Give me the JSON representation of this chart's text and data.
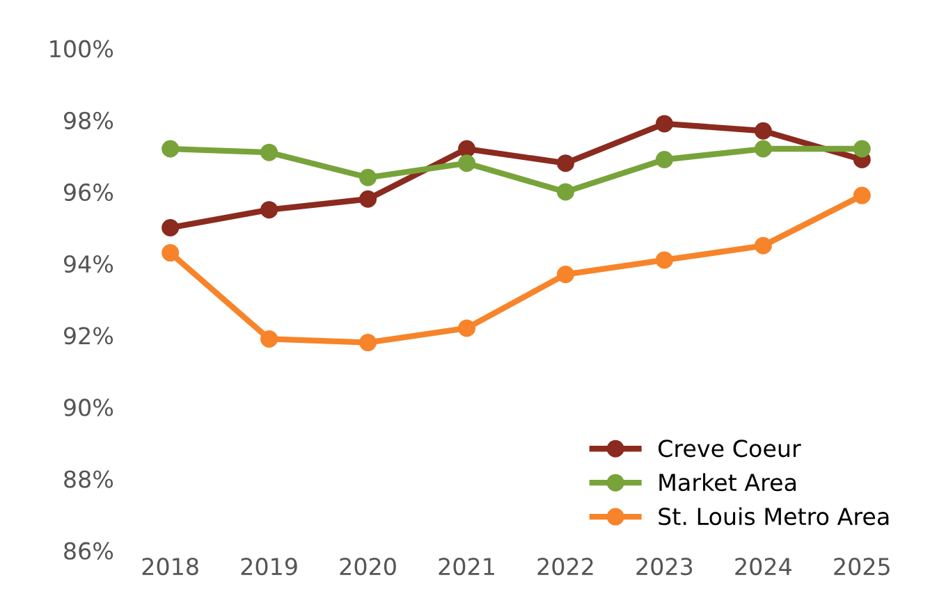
{
  "chart_data": {
    "type": "line",
    "categories": [
      "2018",
      "2019",
      "2020",
      "2021",
      "2022",
      "2023",
      "2024",
      "2025"
    ],
    "series": [
      {
        "name": "Creve Coeur",
        "color": "#8b2a1e",
        "values": [
          95.0,
          95.5,
          95.8,
          97.2,
          96.8,
          97.9,
          97.7,
          96.9
        ]
      },
      {
        "name": "Market Area",
        "color": "#78a33a",
        "values": [
          97.2,
          97.1,
          96.4,
          96.8,
          96.0,
          96.9,
          97.2,
          97.2
        ]
      },
      {
        "name": "St. Louis Metro Area",
        "color": "#f7842a",
        "values": [
          94.3,
          91.9,
          91.8,
          92.2,
          93.7,
          94.1,
          94.5,
          95.9
        ]
      }
    ],
    "ylim": [
      86,
      100
    ],
    "yticks": [
      {
        "value": 86,
        "label": "86%"
      },
      {
        "value": 88,
        "label": "88%"
      },
      {
        "value": 90,
        "label": "90%"
      },
      {
        "value": 92,
        "label": "92%"
      },
      {
        "value": 94,
        "label": "94%"
      },
      {
        "value": 96,
        "label": "96%"
      },
      {
        "value": 98,
        "label": "98%"
      },
      {
        "value": 100,
        "label": "100%"
      }
    ],
    "grid": false,
    "legend": "bottom right",
    "marker": "circle",
    "line_style": "solid"
  }
}
